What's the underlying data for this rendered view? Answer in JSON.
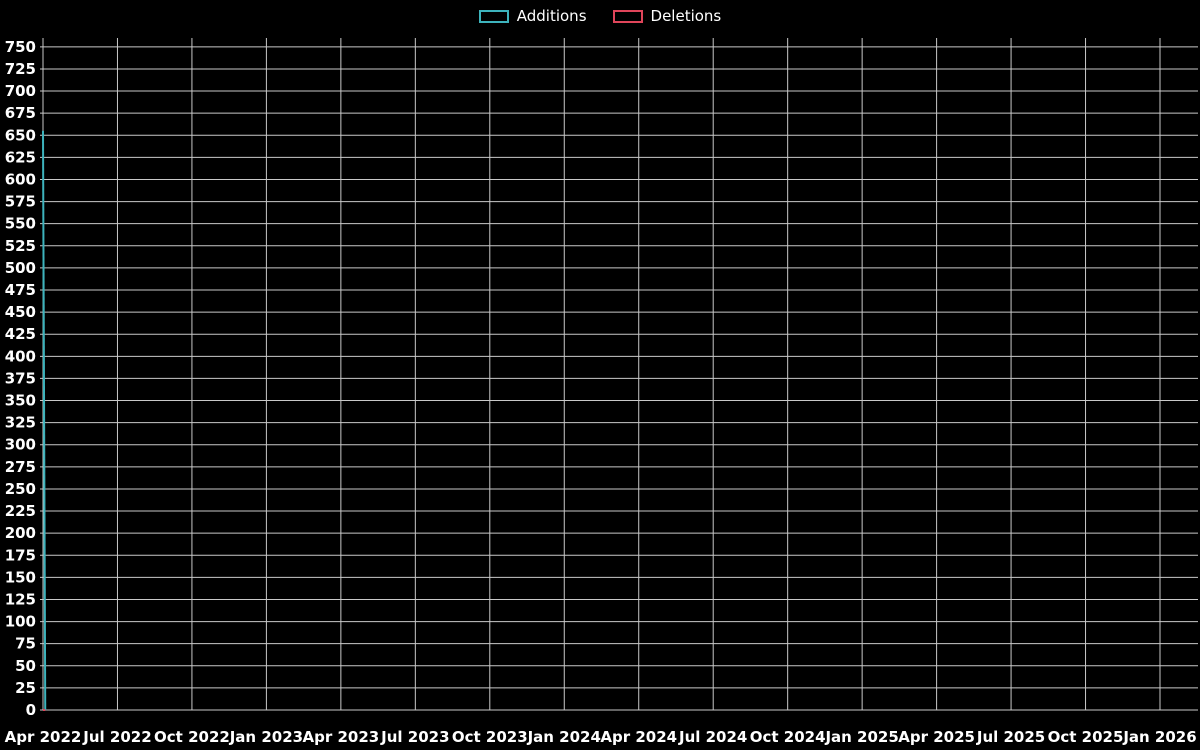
{
  "legend": {
    "items": [
      {
        "label": "Additions",
        "color": "#3db3bc"
      },
      {
        "label": "Deletions",
        "color": "#e0455a"
      }
    ]
  },
  "chart_data": {
    "type": "line",
    "title": "",
    "xlabel": "",
    "ylabel": "",
    "legend_position": "top-center",
    "grid": true,
    "background_color": "#000000",
    "grid_color": "#c9c9c9",
    "axis_text_color": "#ffffff",
    "ylim": [
      0,
      760
    ],
    "y_ticks": [
      0,
      25,
      50,
      75,
      100,
      125,
      150,
      175,
      200,
      225,
      250,
      275,
      300,
      325,
      350,
      375,
      400,
      425,
      450,
      475,
      500,
      525,
      550,
      575,
      600,
      625,
      650,
      675,
      700,
      725,
      750
    ],
    "x_ticks": [
      "Apr 2022",
      "Jul 2022",
      "Oct 2022",
      "Jan 2023",
      "Apr 2023",
      "Jul 2023",
      "Oct 2023",
      "Jan 2024",
      "Apr 2024",
      "Jul 2024",
      "Oct 2024",
      "Jan 2025",
      "Apr 2025",
      "Jul 2025",
      "Oct 2025",
      "Jan 2026"
    ],
    "series": [
      {
        "name": "Additions",
        "color": "#3db3bc",
        "points": [
          {
            "x": 0,
            "y": 655
          },
          {
            "x": 0.03,
            "y": 0
          }
        ]
      },
      {
        "name": "Deletions",
        "color": "#e0455a",
        "points": [
          {
            "x": 0,
            "y": 0
          },
          {
            "x": 0.03,
            "y": 0
          }
        ]
      }
    ]
  }
}
